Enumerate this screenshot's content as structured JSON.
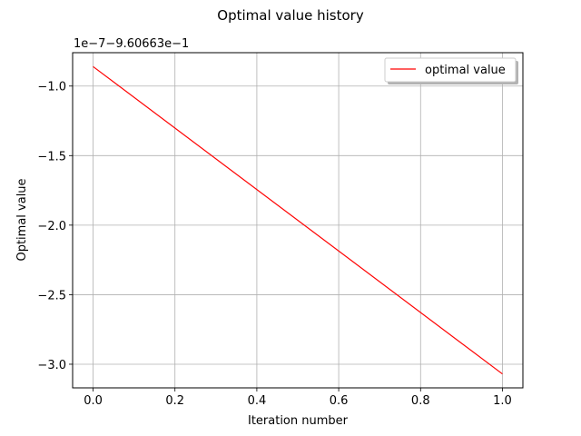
{
  "chart_data": {
    "type": "line",
    "title": "Optimal value history",
    "xlabel": "Iteration number",
    "ylabel": "Optimal value",
    "offset_text": "1e−7−9.60663e−1",
    "xlim": [
      -0.05,
      1.05
    ],
    "ylim": [
      -3.17,
      -0.76
    ],
    "x_ticks": [
      0.0,
      0.2,
      0.4,
      0.6,
      0.8,
      1.0
    ],
    "x_tick_labels": [
      "0.0",
      "0.2",
      "0.4",
      "0.6",
      "0.8",
      "1.0"
    ],
    "y_ticks": [
      -1.0,
      -1.5,
      -2.0,
      -2.5,
      -3.0
    ],
    "y_tick_labels": [
      "−1.0",
      "−1.5",
      "−2.0",
      "−2.5",
      "−3.0"
    ],
    "grid": true,
    "legend_position": "top-right",
    "series": [
      {
        "name": "optimal value",
        "color": "#ff0000",
        "x": [
          0.0,
          1.0
        ],
        "y": [
          -0.86,
          -3.07
        ]
      }
    ]
  }
}
